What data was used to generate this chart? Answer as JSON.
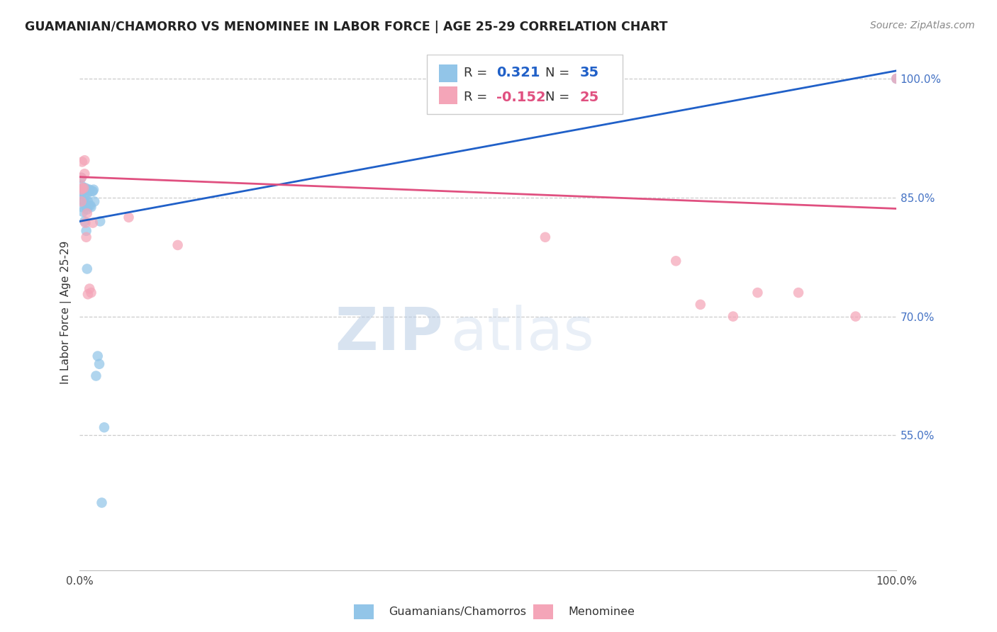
{
  "title": "GUAMANIAN/CHAMORRO VS MENOMINEE IN LABOR FORCE | AGE 25-29 CORRELATION CHART",
  "source_text": "Source: ZipAtlas.com",
  "ylabel": "In Labor Force | Age 25-29",
  "legend_label_blue": "Guamanians/Chamorros",
  "legend_label_pink": "Menominee",
  "R_blue": 0.321,
  "N_blue": 35,
  "R_pink": -0.152,
  "N_pink": 25,
  "xlim": [
    0.0,
    1.0
  ],
  "ylim": [
    0.38,
    1.03
  ],
  "x_ticks": [
    0.0,
    0.1,
    0.2,
    0.3,
    0.4,
    0.5,
    0.6,
    0.7,
    0.8,
    0.9,
    1.0
  ],
  "x_tick_labels": [
    "0.0%",
    "",
    "",
    "",
    "",
    "",
    "",
    "",
    "",
    "",
    "100.0%"
  ],
  "y_ticks_right": [
    0.55,
    0.7,
    0.85,
    1.0
  ],
  "y_tick_labels_right": [
    "55.0%",
    "70.0%",
    "85.0%",
    "100.0%"
  ],
  "color_blue": "#92c5e8",
  "color_pink": "#f4a5b8",
  "line_color_blue": "#2060c8",
  "line_color_pink": "#e05080",
  "background_color": "#ffffff",
  "blue_scatter_x": [
    0.002,
    0.002,
    0.002,
    0.003,
    0.003,
    0.004,
    0.004,
    0.005,
    0.005,
    0.006,
    0.006,
    0.007,
    0.007,
    0.008,
    0.008,
    0.009,
    0.009,
    0.01,
    0.01,
    0.011,
    0.011,
    0.012,
    0.013,
    0.014,
    0.015,
    0.016,
    0.017,
    0.018,
    0.02,
    0.022,
    0.024,
    0.025,
    0.027,
    0.03,
    1.0
  ],
  "blue_scatter_y": [
    0.858,
    0.865,
    0.875,
    0.838,
    0.848,
    0.832,
    0.858,
    0.845,
    0.862,
    0.82,
    0.85,
    0.84,
    0.862,
    0.808,
    0.852,
    0.76,
    0.835,
    0.845,
    0.86,
    0.84,
    0.858,
    0.86,
    0.84,
    0.838,
    0.858,
    0.858,
    0.86,
    0.845,
    0.625,
    0.65,
    0.64,
    0.82,
    0.465,
    0.56,
    1.0
  ],
  "pink_scatter_x": [
    0.002,
    0.002,
    0.002,
    0.003,
    0.003,
    0.005,
    0.006,
    0.006,
    0.007,
    0.008,
    0.009,
    0.01,
    0.012,
    0.014,
    0.016,
    0.06,
    0.12,
    0.57,
    0.73,
    0.76,
    0.8,
    0.83,
    0.88,
    0.95,
    1.0
  ],
  "pink_scatter_y": [
    0.845,
    0.86,
    0.875,
    0.862,
    0.895,
    0.862,
    0.88,
    0.897,
    0.818,
    0.8,
    0.83,
    0.728,
    0.735,
    0.73,
    0.818,
    0.825,
    0.79,
    0.8,
    0.77,
    0.715,
    0.7,
    0.73,
    0.73,
    0.7,
    1.0
  ],
  "blue_line_x": [
    0.0,
    1.0
  ],
  "blue_line_y": [
    0.82,
    1.01
  ],
  "pink_line_x": [
    0.0,
    1.0
  ],
  "pink_line_y": [
    0.876,
    0.836
  ]
}
